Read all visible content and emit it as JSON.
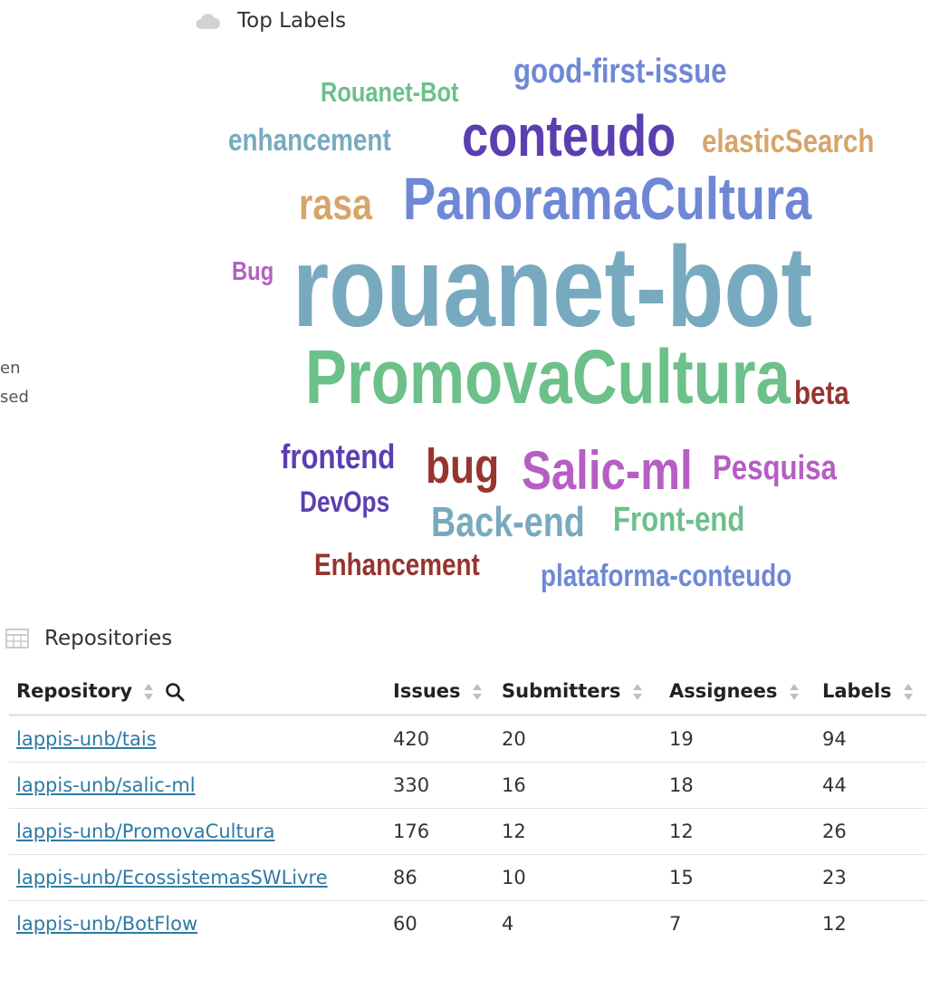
{
  "top_labels": {
    "title": "Top Labels",
    "icon": "cloud-icon",
    "words": [
      {
        "text": "good-first-issue",
        "color": "#6f88d6"
      },
      {
        "text": "Rouanet-Bot",
        "color": "#6cc08a"
      },
      {
        "text": "enhancement",
        "color": "#78aabf"
      },
      {
        "text": "conteudo",
        "color": "#5b3fb0"
      },
      {
        "text": "elasticSearch",
        "color": "#d6a56a"
      },
      {
        "text": "rasa",
        "color": "#d6a56a"
      },
      {
        "text": "PanoramaCultura",
        "color": "#6f88d6"
      },
      {
        "text": "Bug",
        "color": "#b65ec4"
      },
      {
        "text": "rouanet-bot",
        "color": "#78aabf"
      },
      {
        "text": "PromovaCultura",
        "color": "#6cc08a"
      },
      {
        "text": "beta",
        "color": "#963530"
      },
      {
        "text": "frontend",
        "color": "#5b3fb0"
      },
      {
        "text": "bug",
        "color": "#963530"
      },
      {
        "text": "Salic-ml",
        "color": "#b65ec4"
      },
      {
        "text": "Pesquisa",
        "color": "#b65ec4"
      },
      {
        "text": "DevOps",
        "color": "#5b3fb0"
      },
      {
        "text": "Back-end",
        "color": "#78aabf"
      },
      {
        "text": "Front-end",
        "color": "#6cc08a"
      },
      {
        "text": "Enhancement",
        "color": "#963530"
      },
      {
        "text": "plataforma-conteudo",
        "color": "#6f88d6"
      }
    ]
  },
  "side_legend": {
    "line1": "en",
    "line2": "sed"
  },
  "repositories": {
    "title": "Repositories",
    "icon": "table-icon",
    "columns": [
      "Repository",
      "Issues",
      "Submitters",
      "Assignees",
      "Labels"
    ],
    "rows": [
      {
        "repo": "lappis-unb/tais",
        "issues": "420",
        "submitters": "20",
        "assignees": "19",
        "labels": "94"
      },
      {
        "repo": "lappis-unb/salic-ml",
        "issues": "330",
        "submitters": "16",
        "assignees": "18",
        "labels": "44"
      },
      {
        "repo": "lappis-unb/PromovaCultura",
        "issues": "176",
        "submitters": "12",
        "assignees": "12",
        "labels": "26"
      },
      {
        "repo": "lappis-unb/EcossistemasSWLivre",
        "issues": "86",
        "submitters": "10",
        "assignees": "15",
        "labels": "23"
      },
      {
        "repo": "lappis-unb/BotFlow",
        "issues": "60",
        "submitters": "4",
        "assignees": "7",
        "labels": "12"
      }
    ]
  }
}
